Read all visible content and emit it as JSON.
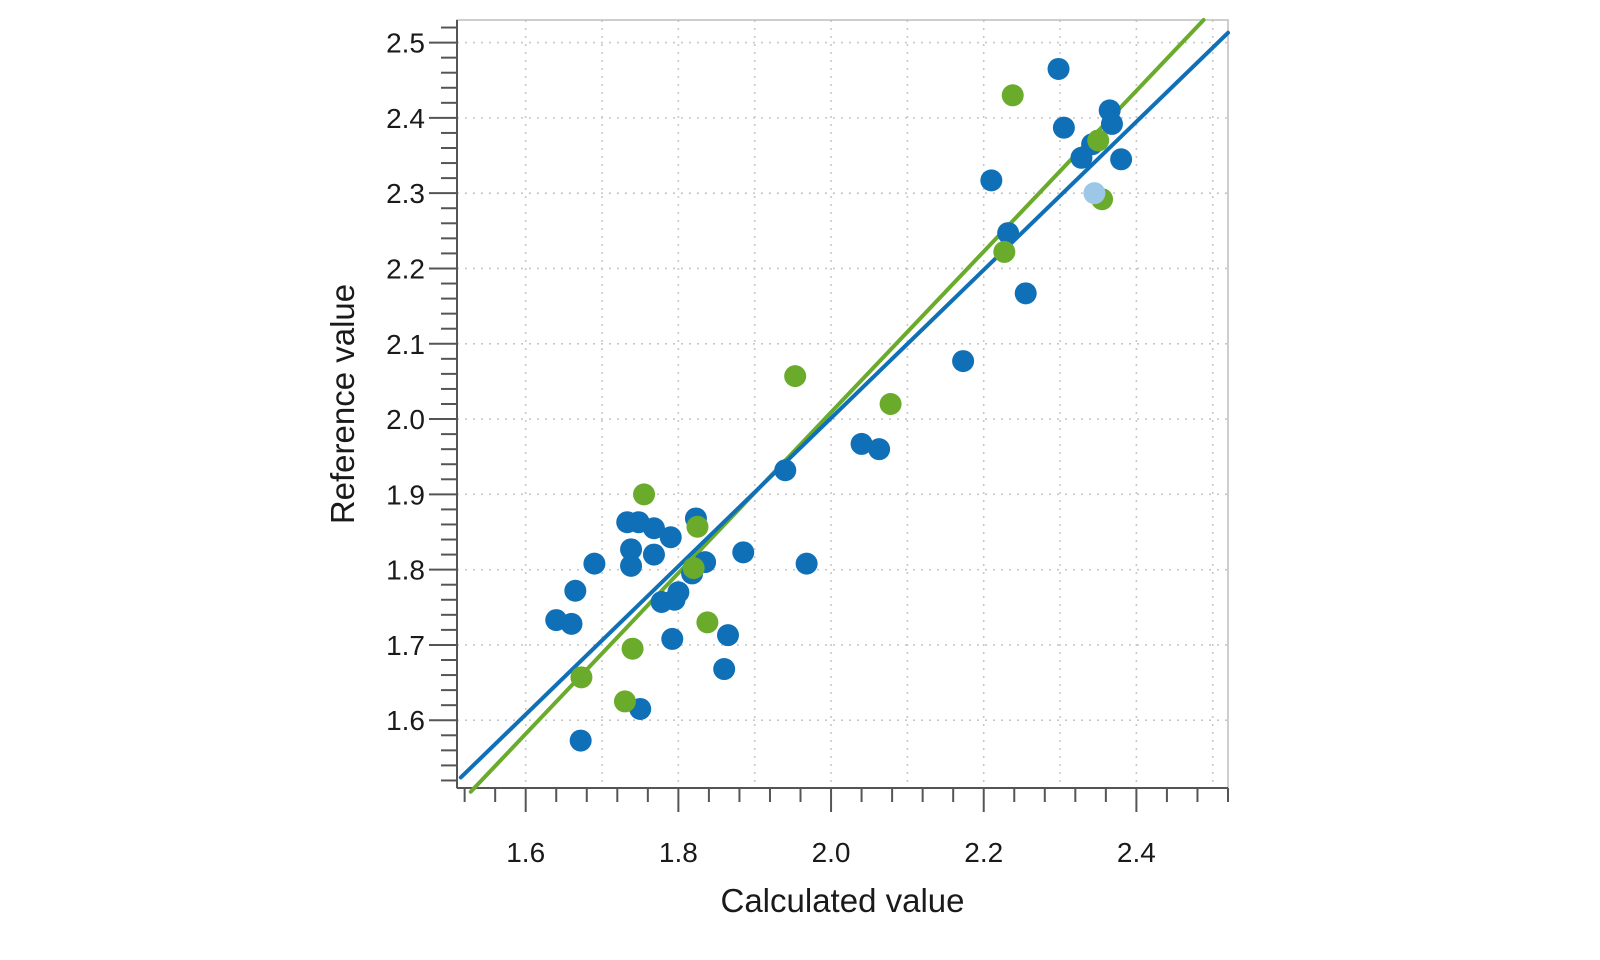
{
  "chart_data": {
    "type": "scatter",
    "title": "",
    "xlabel": "Calculated value",
    "ylabel": "Reference value",
    "xlim": [
      1.51,
      2.52
    ],
    "ylim": [
      1.51,
      2.53
    ],
    "x_ticks": [
      1.6,
      1.8,
      2.0,
      2.2,
      2.4
    ],
    "x_tick_labels": [
      "1.6",
      "1.8",
      "2.0",
      "2.2",
      "2.4"
    ],
    "y_ticks": [
      1.6,
      1.7,
      1.8,
      1.9,
      2.0,
      2.1,
      2.2,
      2.3,
      2.4,
      2.5
    ],
    "y_tick_labels": [
      "1.6",
      "1.7",
      "1.8",
      "1.9",
      "2.0",
      "2.1",
      "2.2",
      "2.3",
      "2.4",
      "2.5"
    ],
    "grid": true,
    "legend": "none",
    "colors": {
      "calibration": "#0f70b7",
      "validation": "#6aab2b",
      "highlight": "#9cc7e6",
      "grid": "#c8c8c8",
      "axis": "#555555",
      "frame": "#bdbdbd"
    },
    "series": [
      {
        "color": "#0f70b7",
        "points": [
          [
            1.64,
            1.733
          ],
          [
            1.66,
            1.728
          ],
          [
            1.665,
            1.772
          ],
          [
            1.672,
            1.573
          ],
          [
            1.69,
            1.808
          ],
          [
            1.733,
            1.863
          ],
          [
            1.738,
            1.827
          ],
          [
            1.738,
            1.805
          ],
          [
            1.748,
            1.863
          ],
          [
            1.75,
            1.615
          ],
          [
            1.768,
            1.855
          ],
          [
            1.768,
            1.82
          ],
          [
            1.778,
            1.757
          ],
          [
            1.79,
            1.843
          ],
          [
            1.792,
            1.708
          ],
          [
            1.795,
            1.76
          ],
          [
            1.8,
            1.77
          ],
          [
            1.818,
            1.795
          ],
          [
            1.823,
            1.868
          ],
          [
            1.835,
            1.81
          ],
          [
            1.86,
            1.668
          ],
          [
            1.865,
            1.713
          ],
          [
            1.885,
            1.823
          ],
          [
            1.94,
            1.932
          ],
          [
            1.968,
            1.808
          ],
          [
            2.04,
            1.967
          ],
          [
            2.063,
            1.96
          ],
          [
            2.173,
            2.077
          ],
          [
            2.21,
            2.317
          ],
          [
            2.232,
            2.247
          ],
          [
            2.255,
            2.167
          ],
          [
            2.298,
            2.465
          ],
          [
            2.305,
            2.387
          ],
          [
            2.328,
            2.347
          ],
          [
            2.342,
            2.365
          ],
          [
            2.365,
            2.41
          ],
          [
            2.368,
            2.392
          ],
          [
            2.38,
            2.345
          ]
        ],
        "fit_line": {
          "x": [
            1.515,
            2.52
          ],
          "y": [
            1.524,
            2.513
          ]
        }
      },
      {
        "color": "#6aab2b",
        "points": [
          [
            1.673,
            1.657
          ],
          [
            1.73,
            1.625
          ],
          [
            1.74,
            1.695
          ],
          [
            1.755,
            1.9
          ],
          [
            1.82,
            1.802
          ],
          [
            1.825,
            1.857
          ],
          [
            1.838,
            1.73
          ],
          [
            1.953,
            2.057
          ],
          [
            2.078,
            2.02
          ],
          [
            2.227,
            2.222
          ],
          [
            2.238,
            2.43
          ],
          [
            2.35,
            2.37
          ],
          [
            2.355,
            2.292
          ]
        ],
        "fit_line": {
          "x": [
            1.528,
            2.488
          ],
          "y": [
            1.505,
            2.53
          ]
        }
      },
      {
        "color": "#9cc7e6",
        "points": [
          [
            2.345,
            2.3
          ]
        ]
      }
    ]
  }
}
